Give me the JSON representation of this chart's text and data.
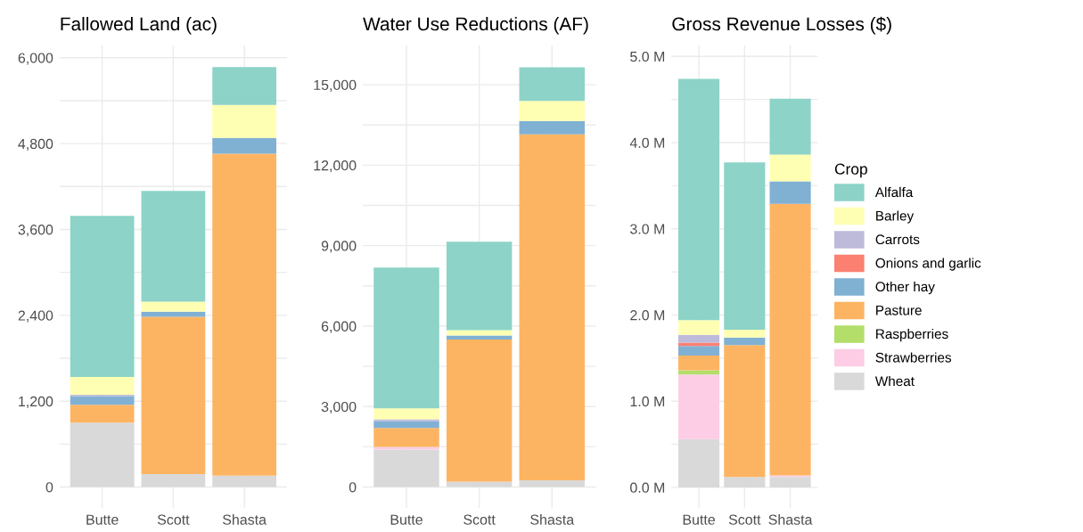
{
  "chart_data": [
    {
      "type": "bar",
      "stacked": true,
      "title": "Fallowed Land (ac)",
      "categories": [
        "Butte",
        "Scott",
        "Shasta"
      ],
      "grid": true,
      "ylim": [
        -294,
        6175
      ],
      "yticks": [
        {
          "value": 0,
          "label": "0"
        },
        {
          "value": 600,
          "label": null
        },
        {
          "value": 1200,
          "label": "1,200"
        },
        {
          "value": 1800,
          "label": null
        },
        {
          "value": 2400,
          "label": "2,400"
        },
        {
          "value": 3000,
          "label": null
        },
        {
          "value": 3600,
          "label": "3,600"
        },
        {
          "value": 4200,
          "label": null
        },
        {
          "value": 4800,
          "label": "4,800"
        },
        {
          "value": 5400,
          "label": null
        },
        {
          "value": 6000,
          "label": "6,000"
        }
      ],
      "series": [
        {
          "color": "#d9d9d9",
          "values": [
            900,
            180,
            160
          ]
        },
        {
          "color": "#fccde5",
          "values": [
            0,
            0,
            0
          ]
        },
        {
          "color": "#b3de69",
          "values": [
            0,
            0,
            0
          ]
        },
        {
          "color": "#fdb462",
          "values": [
            250,
            2200,
            4500
          ]
        },
        {
          "color": "#80b1d3",
          "values": [
            120,
            70,
            220
          ]
        },
        {
          "color": "#fb8072",
          "values": [
            0,
            0,
            0
          ]
        },
        {
          "color": "#bebada",
          "values": [
            20,
            0,
            0
          ]
        },
        {
          "color": "#ffffb3",
          "values": [
            250,
            140,
            460
          ]
        },
        {
          "color": "#8dd3c7",
          "values": [
            2250,
            1550,
            530
          ]
        }
      ]
    },
    {
      "type": "bar",
      "stacked": true,
      "title": "Water Use Reductions (AF)",
      "categories": [
        "Butte",
        "Scott",
        "Shasta"
      ],
      "grid": true,
      "ylim": [
        -784,
        16473
      ],
      "yticks": [
        {
          "value": 0,
          "label": "0"
        },
        {
          "value": 1500,
          "label": null
        },
        {
          "value": 3000,
          "label": "3,000"
        },
        {
          "value": 4500,
          "label": null
        },
        {
          "value": 6000,
          "label": "6,000"
        },
        {
          "value": 7500,
          "label": null
        },
        {
          "value": 9000,
          "label": "9,000"
        },
        {
          "value": 10500,
          "label": null
        },
        {
          "value": 12000,
          "label": "12,000"
        },
        {
          "value": 13500,
          "label": null
        },
        {
          "value": 15000,
          "label": "15,000"
        }
      ],
      "series": [
        {
          "color": "#d9d9d9",
          "values": [
            1400,
            200,
            250
          ]
        },
        {
          "color": "#fccde5",
          "values": [
            100,
            0,
            0
          ]
        },
        {
          "color": "#b3de69",
          "values": [
            0,
            0,
            0
          ]
        },
        {
          "color": "#fdb462",
          "values": [
            700,
            5300,
            12900
          ]
        },
        {
          "color": "#80b1d3",
          "values": [
            250,
            150,
            500
          ]
        },
        {
          "color": "#fb8072",
          "values": [
            0,
            0,
            0
          ]
        },
        {
          "color": "#bebada",
          "values": [
            80,
            0,
            0
          ]
        },
        {
          "color": "#ffffb3",
          "values": [
            400,
            200,
            750
          ]
        },
        {
          "color": "#8dd3c7",
          "values": [
            5250,
            3300,
            1250
          ]
        }
      ]
    },
    {
      "type": "bar",
      "stacked": true,
      "title": "Gross Revenue Losses ($)",
      "categories": [
        "Butte",
        "Scott",
        "Shasta"
      ],
      "grid": true,
      "ylim": [
        -0.24,
        5.13
      ],
      "legend": "right",
      "legend_title": "Crop",
      "yticks": [
        {
          "value": 0,
          "label": "0.0 M"
        },
        {
          "value": 0.5,
          "label": null
        },
        {
          "value": 1,
          "label": "1.0 M"
        },
        {
          "value": 1.5,
          "label": null
        },
        {
          "value": 2,
          "label": "2.0 M"
        },
        {
          "value": 2.5,
          "label": null
        },
        {
          "value": 3,
          "label": "3.0 M"
        },
        {
          "value": 3.5,
          "label": null
        },
        {
          "value": 4,
          "label": "4.0 M"
        },
        {
          "value": 4.5,
          "label": null
        },
        {
          "value": 5,
          "label": "5.0 M"
        }
      ],
      "series": [
        {
          "name": "Wheat",
          "color": "#d9d9d9",
          "values": [
            0.56,
            0.12,
            0.12
          ]
        },
        {
          "name": "Strawberries",
          "color": "#fccde5",
          "values": [
            0.75,
            0,
            0.02
          ]
        },
        {
          "name": "Raspberries",
          "color": "#b3de69",
          "values": [
            0.05,
            0,
            0
          ]
        },
        {
          "name": "Pasture",
          "color": "#fdb462",
          "values": [
            0.17,
            1.53,
            3.15
          ]
        },
        {
          "name": "Other hay",
          "color": "#80b1d3",
          "values": [
            0.11,
            0.09,
            0.26
          ]
        },
        {
          "name": "Onions and garlic",
          "color": "#fb8072",
          "values": [
            0.04,
            0,
            0
          ]
        },
        {
          "name": "Carrots",
          "color": "#bebada",
          "values": [
            0.09,
            0,
            0
          ]
        },
        {
          "name": "Barley",
          "color": "#ffffb3",
          "values": [
            0.17,
            0.09,
            0.31
          ]
        },
        {
          "name": "Alfalfa",
          "color": "#8dd3c7",
          "values": [
            2.8,
            1.94,
            0.65
          ]
        }
      ]
    }
  ]
}
